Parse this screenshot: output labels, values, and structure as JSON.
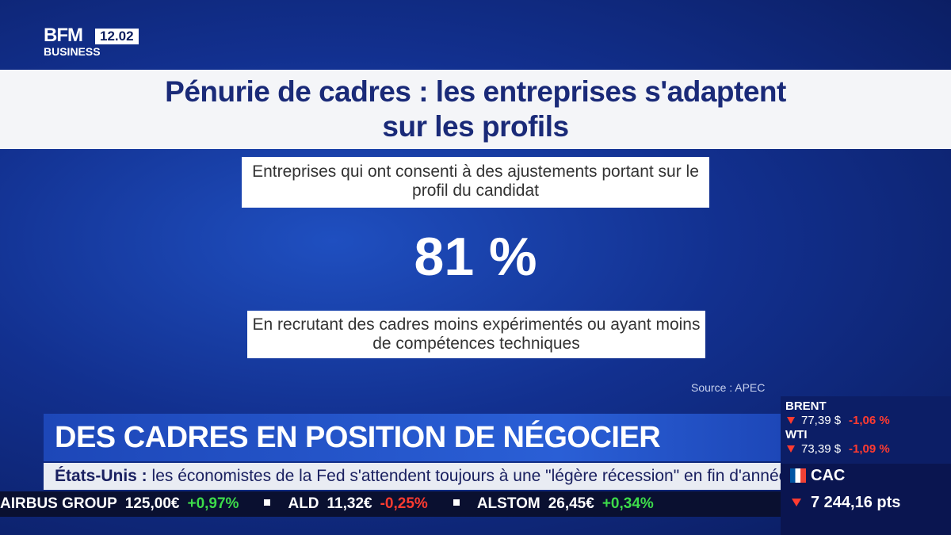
{
  "logo": {
    "brand": "BFM",
    "channel": "BUSINESS",
    "time": "12.02"
  },
  "infographic": {
    "title_lines": [
      "Pénurie de cadres : les entreprises s'adaptent",
      "sur les profils"
    ],
    "subtitle": "Entreprises qui ont consenti à des ajustements portant sur le profil du candidat",
    "stat": "81 %",
    "description": "En recrutant des cadres moins expérimentés ou ayant moins de compétences techniques",
    "source": "Source : APEC"
  },
  "headline": "DES CADRES EN POSITION DE NÉGOCIER",
  "news": {
    "label": "États-Unis :",
    "text": "les économistes de la Fed s'attendent toujours à une \"légère récession\" en fin d'année."
  },
  "stocks": [
    {
      "name": "AIRBUS GROUP",
      "price": "125,00€",
      "change": "+0,97%",
      "color": "#3ddc4a"
    },
    {
      "name": "ALD",
      "price": "11,32€",
      "change": "-0,25%",
      "color": "#ff3b30"
    },
    {
      "name": "ALSTOM",
      "price": "26,45€",
      "change": "+0,34%",
      "color": "#3ddc4a"
    }
  ],
  "markets": [
    {
      "name": "BRENT",
      "price": "77,39 $",
      "change": "-1,06 %",
      "color": "#ff3b30"
    },
    {
      "name": "WTI",
      "price": "73,39 $",
      "change": "-1,09 %",
      "color": "#ff3b30"
    }
  ],
  "index": {
    "name": "CAC",
    "value": "7 244,16 pts",
    "color": "#ff3b30"
  }
}
